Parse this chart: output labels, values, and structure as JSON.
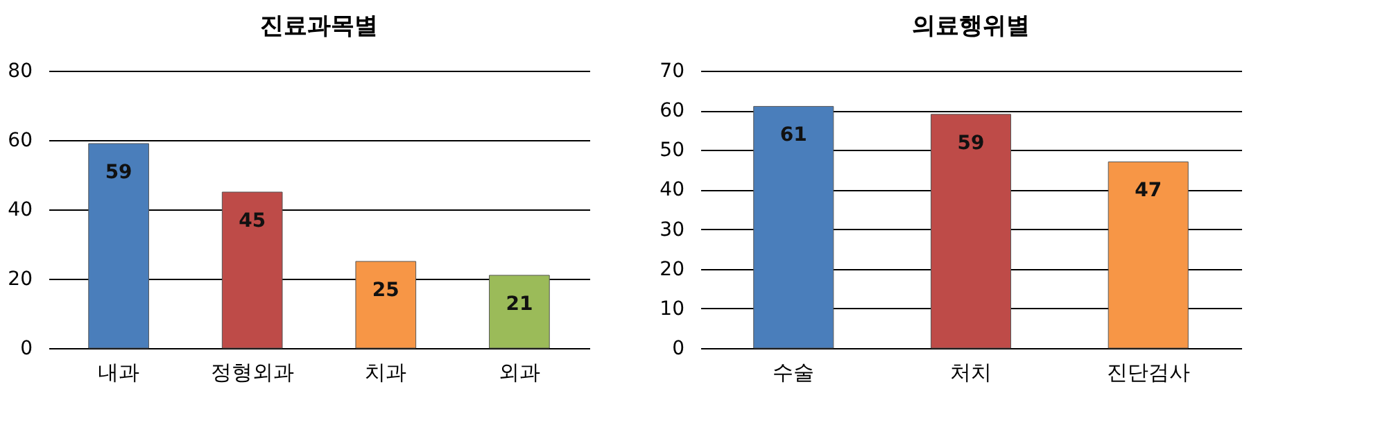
{
  "chart_data": [
    {
      "type": "bar",
      "title": "진료과목별",
      "categories": [
        "내과",
        "정형외과",
        "치과",
        "외과"
      ],
      "values": [
        59,
        45,
        25,
        21
      ],
      "colors": [
        "#4a7ebb",
        "#be4b48",
        "#f79646",
        "#9bbb59"
      ],
      "ylim": [
        0,
        80
      ],
      "yticks": [
        0,
        20,
        40,
        60,
        80
      ],
      "grid": "y",
      "data_labels": true
    },
    {
      "type": "bar",
      "title": "의료행위별",
      "categories": [
        "수술",
        "처치",
        "진단검사"
      ],
      "values": [
        61,
        59,
        47
      ],
      "colors": [
        "#4a7ebb",
        "#be4b48",
        "#f79646"
      ],
      "ylim": [
        0,
        70
      ],
      "yticks": [
        0,
        10,
        20,
        30,
        40,
        50,
        60,
        70
      ],
      "grid": "y",
      "data_labels": true
    }
  ]
}
